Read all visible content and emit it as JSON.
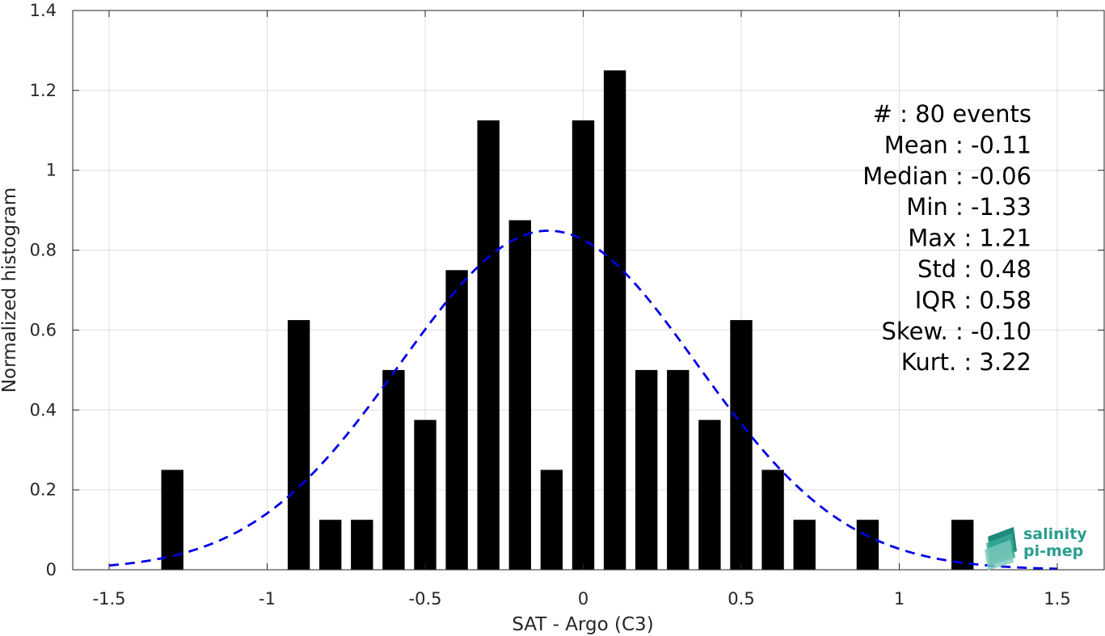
{
  "chart_data": {
    "type": "bar",
    "xlabel": "SAT - Argo (C3)",
    "ylabel": "Normalized histogram",
    "xlim": [
      -1.6,
      1.6
    ],
    "ylim": [
      0,
      1.4
    ],
    "xticks": [
      -1.5,
      -1,
      -0.5,
      0,
      0.5,
      1,
      1.5
    ],
    "xtick_labels": [
      "-1.5",
      "-1",
      "-0.5",
      "0",
      "0.5",
      "1",
      "1.5"
    ],
    "yticks": [
      0,
      0.2,
      0.4,
      0.6,
      0.8,
      1,
      1.2,
      1.4
    ],
    "ytick_labels": [
      "0",
      "0.2",
      "0.4",
      "0.6",
      "0.8",
      "1",
      "1.2",
      "1.4"
    ],
    "grid": true,
    "bar_color": "#000000",
    "bar_width": 0.07,
    "x": [
      -1.3,
      -0.9,
      -0.8,
      -0.7,
      -0.6,
      -0.5,
      -0.4,
      -0.3,
      -0.2,
      -0.1,
      0.0,
      0.1,
      0.2,
      0.3,
      0.4,
      0.5,
      0.6,
      0.7,
      0.9,
      1.2
    ],
    "values": [
      0.25,
      0.625,
      0.125,
      0.125,
      0.5,
      0.375,
      0.75,
      1.125,
      0.875,
      0.25,
      1.125,
      1.25,
      0.5,
      0.5,
      0.375,
      0.625,
      0.25,
      0.125,
      0.125,
      0.125
    ],
    "fit": {
      "style": "dashed",
      "color": "#0000e6",
      "mean": -0.11,
      "std": 0.47,
      "x_range": [
        -1.5,
        1.5
      ]
    },
    "annotations": [
      "#  : 80 events",
      "Mean : -0.11",
      "Median : -0.06",
      "Min : -1.33",
      "Max : 1.21",
      "Std : 0.48",
      "IQR : 0.58",
      "Skew. : -0.10",
      "Kurt. : 3.22"
    ],
    "logo": {
      "line1": "salinity",
      "line2": "pi-mep",
      "color": "#2a9d8f"
    }
  }
}
